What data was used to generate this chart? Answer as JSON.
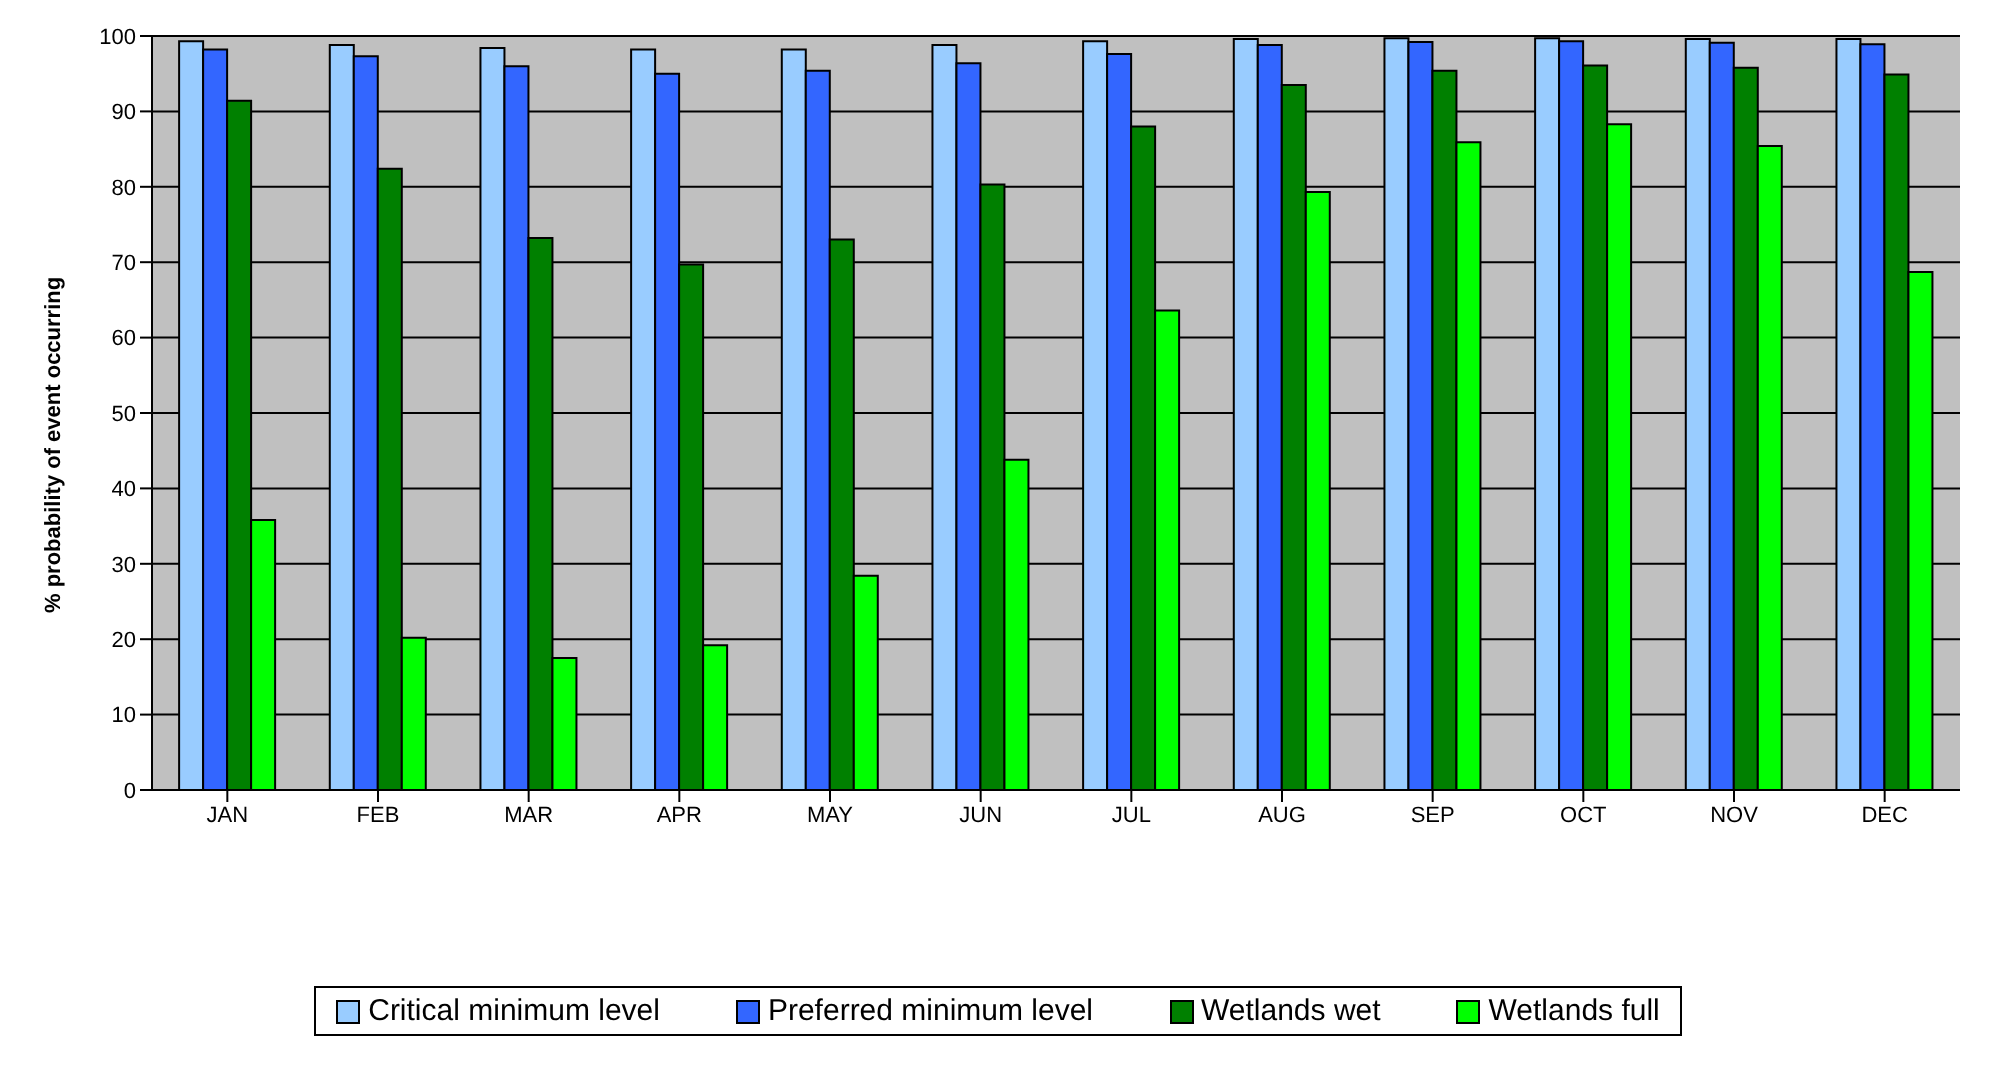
{
  "chart_data": {
    "type": "bar",
    "ylabel": "% probability of event occurring",
    "categories": [
      "JAN",
      "FEB",
      "MAR",
      "APR",
      "MAY",
      "JUN",
      "JUL",
      "AUG",
      "SEP",
      "OCT",
      "NOV",
      "DEC"
    ],
    "series": [
      {
        "name": "Critical minimum level",
        "color": "#99ccff",
        "values": [
          99.3,
          98.8,
          98.4,
          98.2,
          98.2,
          98.8,
          99.3,
          99.6,
          99.7,
          99.7,
          99.6,
          99.6
        ]
      },
      {
        "name": "Preferred minimum level",
        "color": "#3366ff",
        "values": [
          98.2,
          97.3,
          96.0,
          95.0,
          95.4,
          96.4,
          97.6,
          98.8,
          99.2,
          99.3,
          99.1,
          98.9
        ]
      },
      {
        "name": "Wetlands wet",
        "color": "#008000",
        "values": [
          91.4,
          82.4,
          73.2,
          69.7,
          73.0,
          80.3,
          88.0,
          93.5,
          95.4,
          96.1,
          95.8,
          94.9
        ]
      },
      {
        "name": "Wetlands full",
        "color": "#00ff00",
        "values": [
          35.8,
          20.2,
          17.5,
          19.2,
          28.4,
          43.8,
          63.6,
          79.3,
          85.9,
          88.3,
          85.4,
          68.7
        ]
      }
    ],
    "ylim": [
      0,
      100
    ],
    "yticks": [
      0,
      10,
      20,
      30,
      40,
      50,
      60,
      70,
      80,
      90,
      100
    ],
    "grid": "y",
    "legend": "bottom"
  }
}
